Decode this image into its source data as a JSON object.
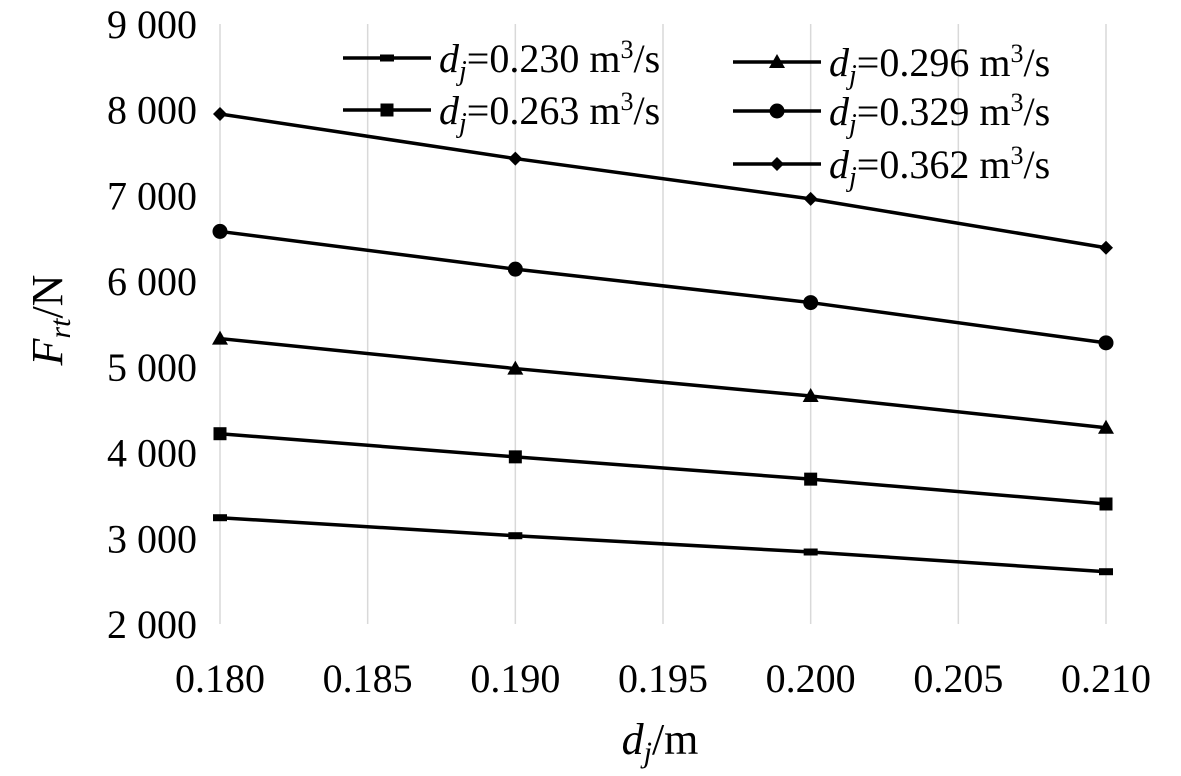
{
  "chart_data": {
    "type": "line",
    "title": "",
    "xlabel": {
      "main": "d",
      "sub": "j",
      "rest": "/m"
    },
    "ylabel": {
      "main": "F",
      "sub": "rt",
      "rest": "/N"
    },
    "xlim": [
      0.18,
      0.21
    ],
    "ylim": [
      2000,
      9000
    ],
    "x_ticks": [
      0.18,
      0.185,
      0.19,
      0.195,
      0.2,
      0.205,
      0.21
    ],
    "x_tick_labels": [
      "0.180",
      "0.185",
      "0.190",
      "0.195",
      "0.200",
      "0.205",
      "0.210"
    ],
    "y_ticks": [
      2000,
      3000,
      4000,
      5000,
      6000,
      7000,
      8000,
      9000
    ],
    "y_tick_labels": [
      "2 000",
      "3 000",
      "4 000",
      "5 000",
      "6 000",
      "7 000",
      "8 000",
      "9 000"
    ],
    "grid": {
      "vertical": true,
      "horizontal": false
    },
    "legend_position": "top-right",
    "x": [
      0.18,
      0.19,
      0.2,
      0.21
    ],
    "series": [
      {
        "name": "dj=0.230 m³/s",
        "label": {
          "main": "d",
          "sub": "j",
          "value": "=0.230 m",
          "sup": "3",
          "tail": "/s"
        },
        "marker": "dash",
        "values": [
          3240,
          3030,
          2840,
          2610
        ]
      },
      {
        "name": "dj=0.263 m³/s",
        "label": {
          "main": "d",
          "sub": "j",
          "value": "=0.263 m",
          "sup": "3",
          "tail": "/s"
        },
        "marker": "square",
        "values": [
          4220,
          3950,
          3690,
          3400
        ]
      },
      {
        "name": "dj=0.296 m³/s",
        "label": {
          "main": "d",
          "sub": "j",
          "value": "=0.296 m",
          "sup": "3",
          "tail": "/s"
        },
        "marker": "triangle",
        "values": [
          5330,
          4980,
          4660,
          4290
        ]
      },
      {
        "name": "dj=0.329 m³/s",
        "label": {
          "main": "d",
          "sub": "j",
          "value": "=0.329 m",
          "sup": "3",
          "tail": "/s"
        },
        "marker": "circle",
        "values": [
          6580,
          6140,
          5750,
          5280
        ]
      },
      {
        "name": "dj=0.362 m³/s",
        "label": {
          "main": "d",
          "sub": "j",
          "value": "=0.362 m",
          "sup": "3",
          "tail": "/s"
        },
        "marker": "diamond",
        "values": [
          7950,
          7430,
          6960,
          6390
        ]
      }
    ]
  }
}
